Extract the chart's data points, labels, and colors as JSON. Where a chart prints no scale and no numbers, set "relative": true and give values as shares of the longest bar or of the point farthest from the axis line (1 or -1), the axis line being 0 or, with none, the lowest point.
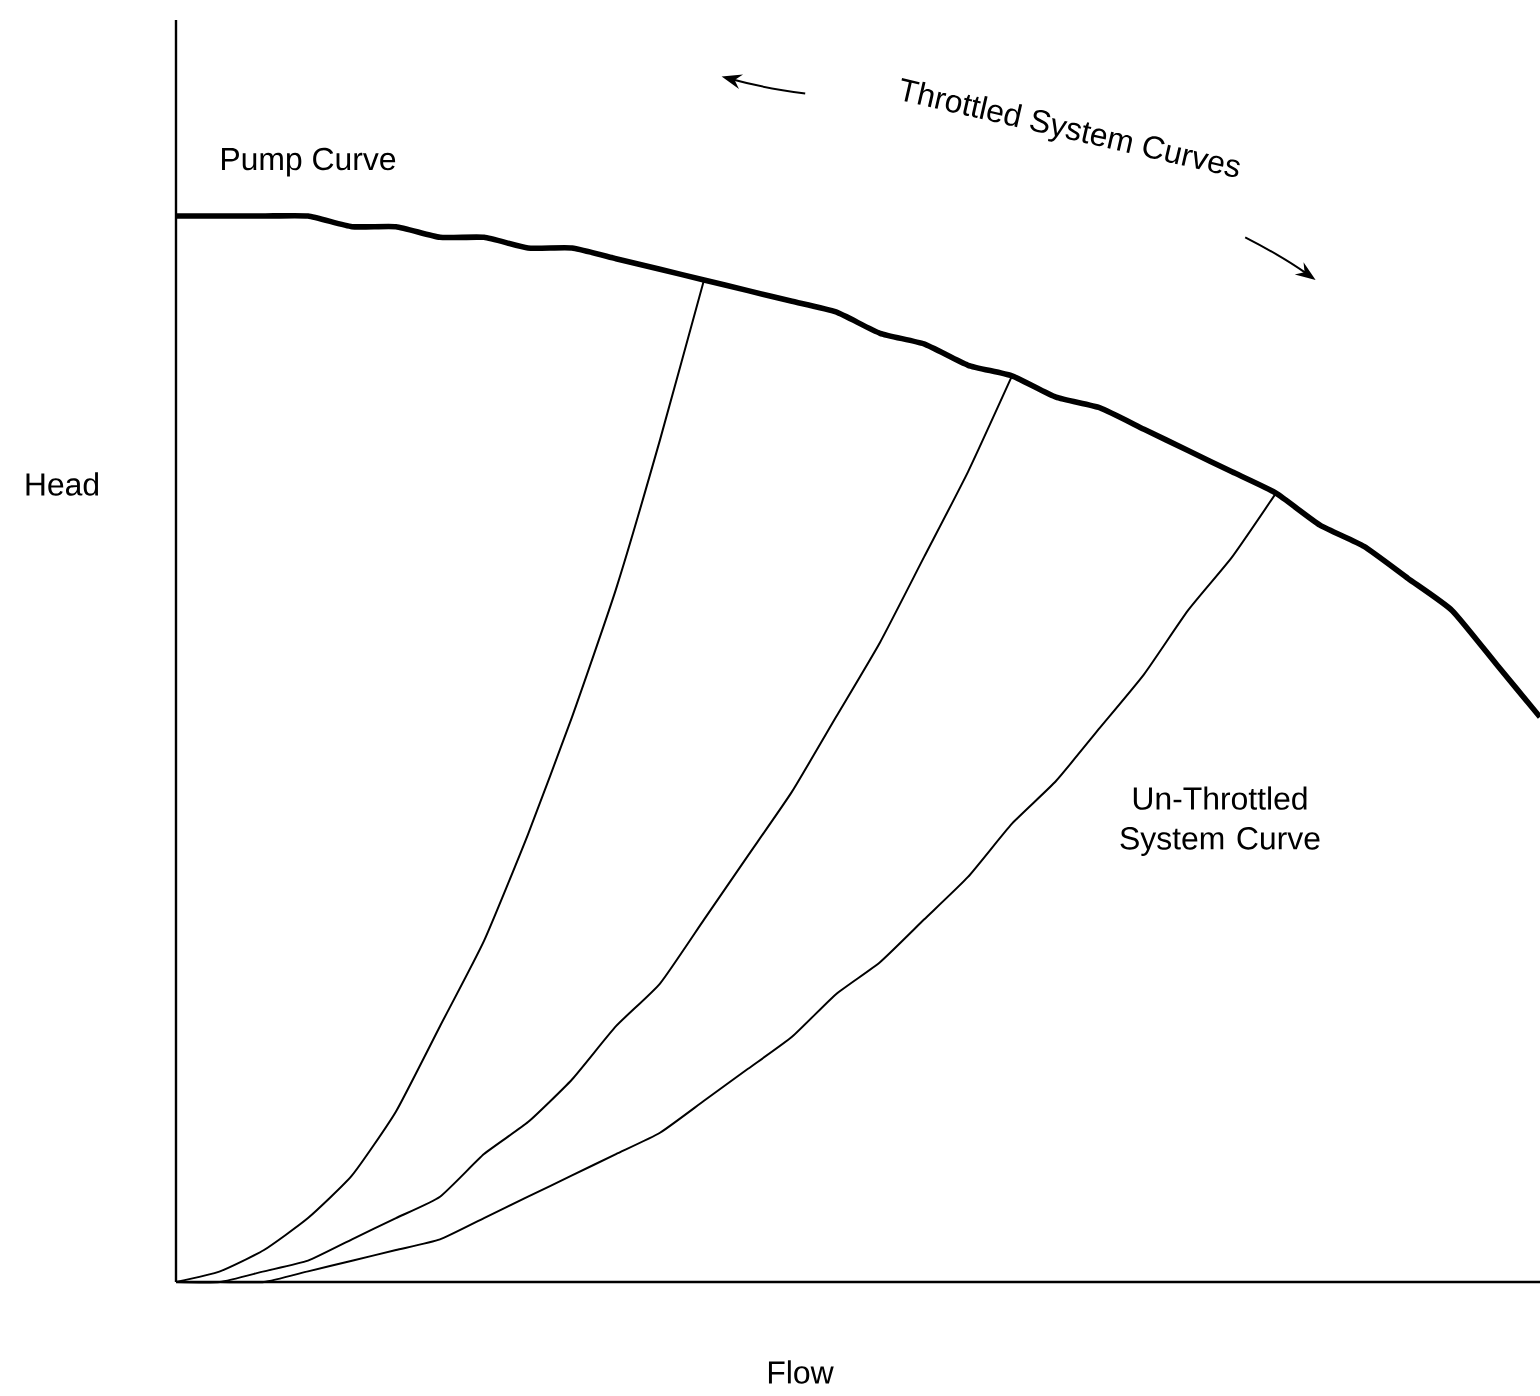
{
  "chart_data": {
    "type": "line",
    "relative": true,
    "xlabel": "Flow",
    "ylabel": "Head",
    "categories": [
      null,
      null,
      null,
      null,
      null,
      null,
      null,
      null,
      null,
      null,
      null,
      null,
      null,
      null,
      null,
      null,
      null,
      null,
      null,
      null,
      null,
      null,
      null,
      null,
      null,
      null,
      null,
      null,
      null,
      null,
      null,
      null
    ],
    "series": [
      {
        "name": "Pump Curve",
        "color": "#000000",
        "values": [
          1.0,
          1.0,
          1.0,
          1.0,
          0.99,
          0.99,
          0.98,
          0.98,
          0.97,
          0.97,
          0.96,
          0.95,
          0.94,
          0.93,
          0.92,
          0.91,
          0.89,
          0.88,
          0.86,
          0.85,
          0.83,
          0.82,
          0.8,
          0.78,
          0.76,
          0.74,
          0.71,
          0.69,
          0.66,
          0.63,
          0.58,
          0.53
        ]
      },
      {
        "color": "#000000",
        "values": [
          0,
          0.01,
          0.03,
          0.06,
          0.1,
          0.16,
          0.24,
          0.32,
          0.42,
          0.53,
          0.65,
          0.79,
          0.94,
          null,
          null,
          null,
          null,
          null,
          null,
          null,
          null,
          null,
          null,
          null,
          null,
          null,
          null,
          null,
          null,
          null,
          null,
          null
        ]
      },
      {
        "color": "#000000",
        "values": [
          0,
          0.0,
          0.01,
          0.02,
          0.04,
          0.06,
          0.08,
          0.12,
          0.15,
          0.19,
          0.24,
          0.28,
          0.34,
          0.4,
          0.46,
          0.53,
          0.6,
          0.68,
          0.76,
          0.85,
          null,
          null,
          null,
          null,
          null,
          null,
          null,
          null,
          null,
          null,
          null,
          null
        ]
      },
      {
        "name": "Un-Throttled System Curve",
        "color": "#000000",
        "values": [
          0,
          0.0,
          0.0,
          0.01,
          0.02,
          0.03,
          0.04,
          0.06,
          0.08,
          0.1,
          0.12,
          0.14,
          0.17,
          0.2,
          0.23,
          0.27,
          0.3,
          0.34,
          0.38,
          0.43,
          0.47,
          0.52,
          0.57,
          0.63,
          0.68,
          0.74,
          null,
          null,
          null,
          null,
          null,
          null
        ]
      }
    ],
    "annotations": [
      "Throttled System Curves"
    ]
  }
}
